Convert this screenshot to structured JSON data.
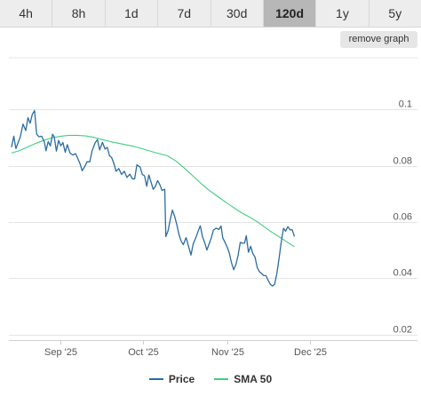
{
  "tabs": [
    {
      "label": "4h",
      "active": false
    },
    {
      "label": "8h",
      "active": false
    },
    {
      "label": "1d",
      "active": false
    },
    {
      "label": "7d",
      "active": false
    },
    {
      "label": "30d",
      "active": false
    },
    {
      "label": "120d",
      "active": true
    },
    {
      "label": "1y",
      "active": false
    },
    {
      "label": "5y",
      "active": false
    }
  ],
  "remove_graph_label": "remove graph",
  "colors": {
    "price": "#2b6ca3",
    "sma": "#3fcf7f"
  },
  "chart_data": {
    "type": "line",
    "x_unit": "days since 2025-08-14",
    "ylim": [
      0.02,
      0.1
    ],
    "yticks": [
      0.02,
      0.04,
      0.06,
      0.08,
      0.1
    ],
    "ytick_labels": [
      "0.02",
      "0.04",
      "0.06",
      "0.08",
      "0.1"
    ],
    "xticks": [
      {
        "label": "Sep '25",
        "x": 18
      },
      {
        "label": "Oct '25",
        "x": 48
      },
      {
        "label": "Nov '25",
        "x": 79
      },
      {
        "label": "Dec '25",
        "x": 109
      }
    ],
    "xlim": [
      0,
      112
    ],
    "grid": true,
    "legend": "bottom-center",
    "series": [
      {
        "name": "Price",
        "color": "#2b6ca3",
        "points": [
          [
            0,
            0.0866
          ],
          [
            0.8,
            0.0905
          ],
          [
            1.6,
            0.0861
          ],
          [
            2.4,
            0.0882
          ],
          [
            3.2,
            0.0903
          ],
          [
            4.2,
            0.0948
          ],
          [
            5.2,
            0.0925
          ],
          [
            6,
            0.0971
          ],
          [
            6.8,
            0.0951
          ],
          [
            7.6,
            0.0983
          ],
          [
            8.4,
            0.0996
          ],
          [
            9.2,
            0.0912
          ],
          [
            10,
            0.0903
          ],
          [
            11,
            0.0905
          ],
          [
            12,
            0.0884
          ],
          [
            12.6,
            0.0853
          ],
          [
            13.4,
            0.0886
          ],
          [
            14.2,
            0.087
          ],
          [
            15,
            0.0912
          ],
          [
            15.6,
            0.0903
          ],
          [
            16.4,
            0.0852
          ],
          [
            17.2,
            0.089
          ],
          [
            18,
            0.0871
          ],
          [
            18.8,
            0.0882
          ],
          [
            19.6,
            0.0848
          ],
          [
            20.4,
            0.0875
          ],
          [
            21.4,
            0.0845
          ],
          [
            22.4,
            0.0838
          ],
          [
            23.4,
            0.0843
          ],
          [
            24.2,
            0.0826
          ],
          [
            25,
            0.0808
          ],
          [
            25.8,
            0.0782
          ],
          [
            26.6,
            0.0794
          ],
          [
            27.6,
            0.0814
          ],
          [
            28.6,
            0.0814
          ],
          [
            29.4,
            0.0852
          ],
          [
            30.6,
            0.0882
          ],
          [
            31.4,
            0.0893
          ],
          [
            32.2,
            0.0856
          ],
          [
            33.2,
            0.0883
          ],
          [
            34.2,
            0.0859
          ],
          [
            35,
            0.0865
          ],
          [
            35.8,
            0.0835
          ],
          [
            36.6,
            0.0829
          ],
          [
            37.4,
            0.0808
          ],
          [
            38.2,
            0.078
          ],
          [
            39.2,
            0.079
          ],
          [
            40.2,
            0.0769
          ],
          [
            41.2,
            0.078
          ],
          [
            42.2,
            0.0758
          ],
          [
            43.2,
            0.077
          ],
          [
            44.2,
            0.0753
          ],
          [
            45,
            0.0753
          ],
          [
            45.8,
            0.0803
          ],
          [
            47,
            0.0795
          ],
          [
            47.8,
            0.0769
          ],
          [
            48.6,
            0.0764
          ],
          [
            49.4,
            0.0727
          ],
          [
            50.2,
            0.0767
          ],
          [
            51,
            0.0741
          ],
          [
            51.8,
            0.0716
          ],
          [
            52.6,
            0.0727
          ],
          [
            53.4,
            0.0747
          ],
          [
            54.2,
            0.0733
          ],
          [
            55,
            0.0712
          ],
          [
            56,
            0.0716
          ],
          [
            56.4,
            0.0548
          ],
          [
            57.2,
            0.0568
          ],
          [
            58,
            0.0607
          ],
          [
            58.8,
            0.0642
          ],
          [
            59.6,
            0.062
          ],
          [
            60.4,
            0.0591
          ],
          [
            61.2,
            0.0555
          ],
          [
            62,
            0.0531
          ],
          [
            62.8,
            0.0519
          ],
          [
            63.8,
            0.0544
          ],
          [
            64.8,
            0.051
          ],
          [
            65.6,
            0.0482
          ],
          [
            66.4,
            0.0521
          ],
          [
            67.4,
            0.0545
          ],
          [
            68.2,
            0.0567
          ],
          [
            69,
            0.0586
          ],
          [
            69.8,
            0.0547
          ],
          [
            70.6,
            0.0527
          ],
          [
            71.4,
            0.05
          ],
          [
            72.2,
            0.0521
          ],
          [
            73,
            0.0542
          ],
          [
            73.8,
            0.0571
          ],
          [
            74.8,
            0.0578
          ],
          [
            75.8,
            0.0573
          ],
          [
            76.6,
            0.0585
          ],
          [
            77.2,
            0.0543
          ],
          [
            78,
            0.0528
          ],
          [
            78.8,
            0.0511
          ],
          [
            79.6,
            0.0489
          ],
          [
            80.4,
            0.0455
          ],
          [
            81.2,
            0.043
          ],
          [
            82,
            0.0448
          ],
          [
            82.8,
            0.048
          ],
          [
            83.6,
            0.0527
          ],
          [
            84.4,
            0.0524
          ],
          [
            85.2,
            0.0525
          ],
          [
            85.8,
            0.0551
          ],
          [
            86.6,
            0.0492
          ],
          [
            87.4,
            0.0513
          ],
          [
            88.2,
            0.0487
          ],
          [
            89,
            0.0475
          ],
          [
            89.8,
            0.0438
          ],
          [
            90.6,
            0.0423
          ],
          [
            91.4,
            0.0416
          ],
          [
            92.2,
            0.0409
          ],
          [
            93,
            0.0409
          ],
          [
            93.8,
            0.0392
          ],
          [
            94.6,
            0.0378
          ],
          [
            95.4,
            0.0372
          ],
          [
            96.2,
            0.0379
          ],
          [
            97,
            0.0418
          ],
          [
            97.8,
            0.047
          ],
          [
            98.6,
            0.053
          ],
          [
            99.4,
            0.0577
          ],
          [
            100.2,
            0.0567
          ],
          [
            101,
            0.0583
          ],
          [
            101.8,
            0.0572
          ],
          [
            102.6,
            0.0572
          ],
          [
            103.4,
            0.0548
          ]
        ]
      },
      {
        "name": "SMA 50",
        "color": "#3fcf7f",
        "points": [
          [
            0,
            0.0845
          ],
          [
            3,
            0.0854
          ],
          [
            6,
            0.0867
          ],
          [
            9,
            0.088
          ],
          [
            12,
            0.0891
          ],
          [
            15,
            0.09
          ],
          [
            18,
            0.0905
          ],
          [
            21,
            0.0908
          ],
          [
            24,
            0.0908
          ],
          [
            27,
            0.0906
          ],
          [
            30,
            0.0901
          ],
          [
            33,
            0.0893
          ],
          [
            36,
            0.0886
          ],
          [
            39,
            0.088
          ],
          [
            42,
            0.0874
          ],
          [
            45,
            0.0868
          ],
          [
            48,
            0.086
          ],
          [
            51,
            0.0851
          ],
          [
            54,
            0.0843
          ],
          [
            57,
            0.0835
          ],
          [
            60,
            0.0817
          ],
          [
            63,
            0.0793
          ],
          [
            66,
            0.0766
          ],
          [
            69,
            0.0739
          ],
          [
            72,
            0.0714
          ],
          [
            75,
            0.0693
          ],
          [
            78,
            0.0672
          ],
          [
            81,
            0.0652
          ],
          [
            84,
            0.0633
          ],
          [
            87,
            0.0617
          ],
          [
            90,
            0.0599
          ],
          [
            93,
            0.0578
          ],
          [
            96,
            0.0558
          ],
          [
            99,
            0.054
          ],
          [
            101,
            0.0526
          ],
          [
            103.4,
            0.0512
          ]
        ]
      }
    ]
  }
}
